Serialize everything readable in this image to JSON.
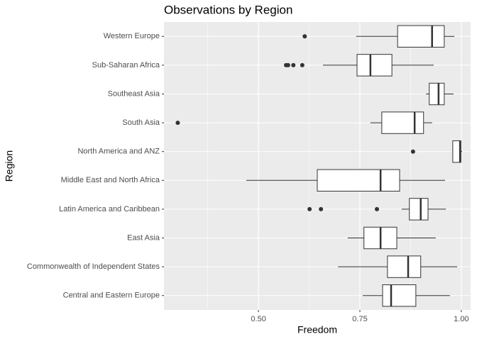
{
  "chart_data": {
    "type": "boxplot",
    "title": "Observations by Region",
    "x_label": "Freedom",
    "y_label": "Region",
    "categories": [
      "Central and Eastern Europe",
      "Commonwealth of Independent States",
      "East Asia",
      "Latin America and Caribbean",
      "Middle East and North Africa",
      "North America and ANZ",
      "South Asia",
      "Southeast Asia",
      "Sub-Saharan Africa",
      "Western Europe"
    ],
    "low": [
      0.757,
      0.696,
      0.72,
      0.853,
      0.47,
      0.978,
      0.776,
      0.913,
      0.659,
      0.741
    ],
    "q1": [
      0.806,
      0.818,
      0.76,
      0.872,
      0.645,
      0.979,
      0.804,
      0.921,
      0.743,
      0.843
    ],
    "median": [
      0.827,
      0.869,
      0.801,
      0.9,
      0.801,
      0.997,
      0.885,
      0.944,
      0.776,
      0.928
    ],
    "q3": [
      0.888,
      0.9,
      0.841,
      0.918,
      0.848,
      0.999,
      0.907,
      0.958,
      0.829,
      0.958
    ],
    "high": [
      0.972,
      0.99,
      0.937,
      0.962,
      0.96,
      1.002,
      0.928,
      0.981,
      0.932,
      0.983
    ],
    "outliers": [
      [],
      [],
      [],
      [
        0.626,
        0.654,
        0.792
      ],
      [],
      [
        0.881
      ],
      [
        0.301
      ],
      [],
      [
        0.568,
        0.573,
        0.586,
        0.608
      ],
      [
        0.614
      ]
    ],
    "xlim": [
      0.267,
      1.023
    ],
    "xticks": [
      {
        "value": 0.5,
        "label": "0.50"
      },
      {
        "value": 0.75,
        "label": "0.75"
      },
      {
        "value": 1.0,
        "label": "1.00"
      }
    ],
    "xminor": [
      0.375,
      0.625,
      0.875
    ],
    "grid": true,
    "box_color": "#ffffff",
    "line_color": "#333333",
    "panel_color": "#ebebeb"
  }
}
